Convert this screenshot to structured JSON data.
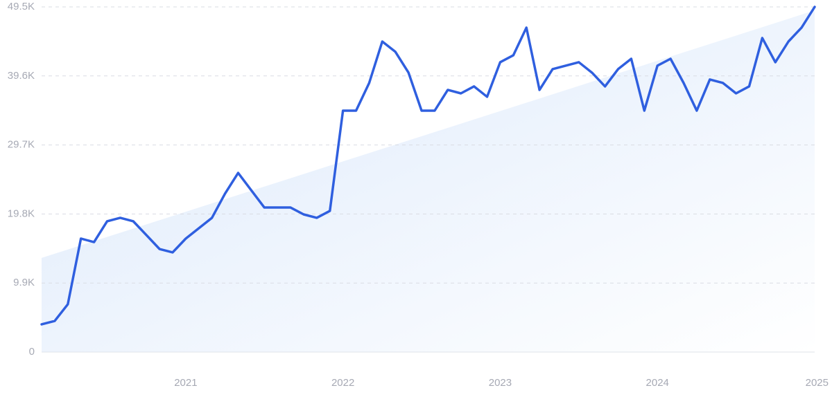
{
  "chart_data": {
    "type": "line",
    "categories": [
      null,
      null,
      null,
      null,
      null,
      null,
      null,
      null,
      null,
      null,
      null,
      "2021",
      null,
      null,
      null,
      null,
      null,
      null,
      null,
      null,
      null,
      null,
      null,
      "2022",
      null,
      null,
      null,
      null,
      null,
      null,
      null,
      null,
      null,
      null,
      null,
      "2023",
      null,
      null,
      null,
      null,
      null,
      null,
      null,
      null,
      null,
      null,
      null,
      "2024",
      null,
      null,
      null,
      null,
      null,
      null,
      null,
      null,
      null,
      null,
      null,
      "2025"
    ],
    "values": [
      3970,
      4460,
      6850,
      16270,
      15770,
      18750,
      19250,
      18750,
      16770,
      14780,
      14290,
      16270,
      17760,
      19250,
      22720,
      25690,
      23210,
      20730,
      20730,
      20730,
      19740,
      19250,
      20240,
      34620,
      34620,
      38590,
      44540,
      43060,
      40080,
      34620,
      34620,
      37600,
      37100,
      38100,
      36610,
      41570,
      42560,
      46530,
      37600,
      40580,
      41070,
      41570,
      40080,
      38100,
      40580,
      42060,
      34620,
      41070,
      42060,
      38590,
      34620,
      39090,
      38590,
      37100,
      38100,
      45040,
      41570,
      44540,
      46530,
      49500
    ],
    "color": "#2f5fdf",
    "trend_area": {
      "start": 13500,
      "end": 49000,
      "color": "#dce9fb"
    },
    "ylim": [
      0,
      49500
    ],
    "yticks": [
      0,
      {
        "value": 9900,
        "label": "9.9K"
      },
      {
        "value": 19800,
        "label": "19.8K"
      },
      {
        "value": 29700,
        "label": "29.7K"
      },
      {
        "value": 39600,
        "label": "39.6K"
      },
      {
        "value": 49500,
        "label": "49.5K"
      }
    ],
    "grid": true
  }
}
